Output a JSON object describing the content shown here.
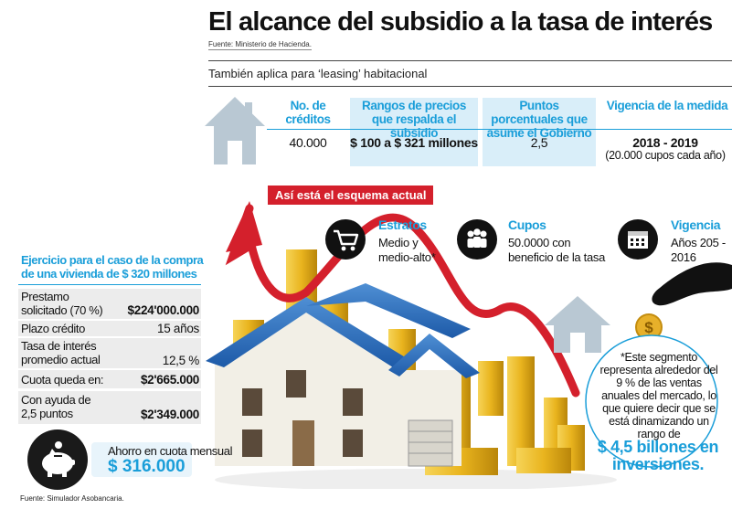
{
  "header": {
    "title": "El alcance del subsidio a la tasa de interés",
    "source": "Fuente: Ministerio de Hacienda.",
    "subtitle": "También aplica para ‘leasing’ habitacional"
  },
  "summary_table": {
    "columns": [
      {
        "header": "No. de créditos",
        "value": "40.000"
      },
      {
        "header": "Rangos de precios que respalda el subsidio",
        "value": "$ 100 a $ 321 millones"
      },
      {
        "header": "Puntos porcentuales que asume el Gobierno",
        "value": "2,5"
      },
      {
        "header": "Vigencia de la medida",
        "value": "2018 - 2019",
        "note": "(20.000 cupos cada año)"
      }
    ]
  },
  "current_scheme": {
    "label": "Así está el esquema actual",
    "items": [
      {
        "title": "Estratos",
        "text": "Medio y medio-alto*",
        "icon": "cart-icon"
      },
      {
        "title": "Cupos",
        "text": "50.0000 con beneficio de la tasa",
        "icon": "people-icon"
      },
      {
        "title": "Vigencia",
        "text": "Años 205 - 2016",
        "icon": "calendar-icon"
      }
    ]
  },
  "exercise": {
    "title": "Ejercicio para el caso de la compra de una vivienda de $ 320 millones",
    "rows": [
      {
        "label": "Prestamo solicitado (70 %)",
        "value": "$224'000.000"
      },
      {
        "label": "Plazo crédito",
        "value": "15 años"
      },
      {
        "label": "Tasa de interés promedio actual",
        "value": "12,5 %"
      },
      {
        "label": "Cuota queda en:",
        "value": "$2'665.000"
      },
      {
        "label": "Con ayuda de 2,5 puntos",
        "value": "$2'349.000"
      }
    ]
  },
  "savings": {
    "label": "Ahorro en cuota mensual",
    "value": "$ 316.000",
    "icon": "piggy-bank-icon"
  },
  "bubble": {
    "text": "*Este segmento representa alrededor del 9 % de las ventas anuales del mercado, lo que quiere decir que se está dinamizando un rango de",
    "highlight": "$ 4,5 billones en inversiones.",
    "coin_symbol": "$"
  },
  "footer": {
    "source": "Fuente: Simulador Asobancaria."
  },
  "colors": {
    "accent": "#1a9ed9",
    "red": "#d4202c",
    "shade": "#d9eef9",
    "gold": "#e8b820"
  }
}
